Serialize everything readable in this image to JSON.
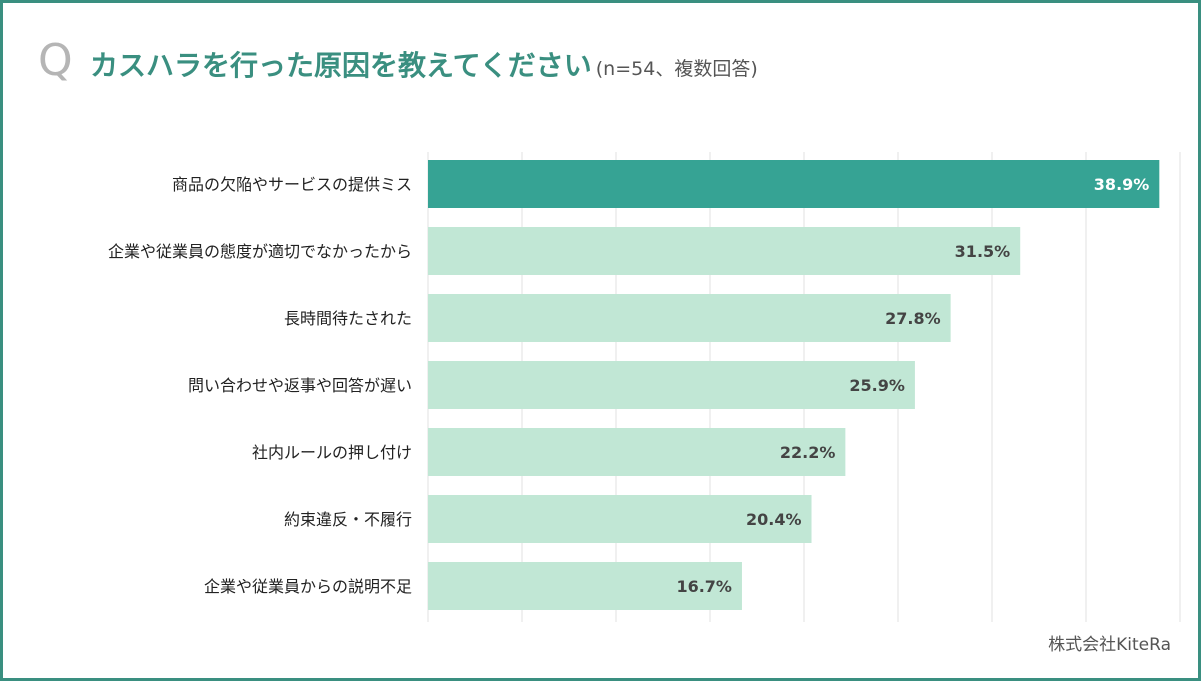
{
  "header": {
    "q_mark": "Q",
    "title": "カスハラを行った原因を教えてください",
    "subtitle": "(n=54、複数回答)"
  },
  "credit": "株式会社KiteRa",
  "colors": {
    "frame": "#3a8f80",
    "highlight_bar": "#36a394",
    "bar": "#c1e7d5",
    "grid": "#e2e2e2",
    "highlight_label": "#ffffff",
    "label": "#444444"
  },
  "chart_data": {
    "type": "bar",
    "orientation": "horizontal",
    "title": "カスハラを行った原因を教えてください",
    "subtitle": "(n=54、複数回答)",
    "categories": [
      "商品の欠陥やサービスの提供ミス",
      "企業や従業員の態度が適切でなかったから",
      "長時間待たされた",
      "問い合わせや返事や回答が遅い",
      "社内ルールの押し付け",
      "約束違反・不履行",
      "企業や従業員からの説明不足"
    ],
    "values": [
      38.9,
      31.5,
      27.8,
      25.9,
      22.2,
      20.4,
      16.7
    ],
    "value_labels": [
      "38.9%",
      "31.5%",
      "27.8%",
      "25.9%",
      "22.2%",
      "20.4%",
      "16.7%"
    ],
    "unit": "%",
    "xlim": [
      0,
      40
    ],
    "grid_step": 5,
    "highlight_index": 0,
    "xlabel": "",
    "ylabel": ""
  }
}
